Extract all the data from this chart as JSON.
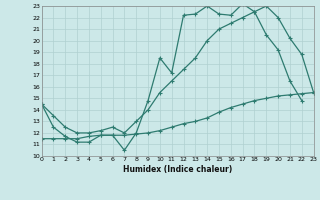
{
  "xlabel": "Humidex (Indice chaleur)",
  "xlim": [
    0,
    23
  ],
  "ylim": [
    10,
    23
  ],
  "xticks": [
    0,
    1,
    2,
    3,
    4,
    5,
    6,
    7,
    8,
    9,
    10,
    11,
    12,
    13,
    14,
    15,
    16,
    17,
    18,
    19,
    20,
    21,
    22,
    23
  ],
  "yticks": [
    10,
    11,
    12,
    13,
    14,
    15,
    16,
    17,
    18,
    19,
    20,
    21,
    22,
    23
  ],
  "bg_color": "#cce8e8",
  "line_color": "#2e7b70",
  "grid_color": "#b0d0d0",
  "line1_x": [
    0,
    1,
    2,
    3,
    4,
    5,
    6,
    7,
    8,
    9,
    10,
    11,
    12,
    13,
    14,
    15,
    16,
    17,
    18,
    19,
    20,
    21,
    22
  ],
  "line1_y": [
    14.5,
    12.5,
    11.7,
    11.2,
    11.2,
    11.8,
    11.8,
    10.5,
    12.0,
    14.8,
    18.5,
    17.2,
    22.2,
    22.3,
    23.0,
    22.3,
    22.2,
    23.2,
    22.5,
    20.5,
    19.2,
    16.5,
    14.8
  ],
  "line2_x": [
    0,
    1,
    2,
    3,
    4,
    5,
    6,
    7,
    8,
    9,
    10,
    11,
    12,
    13,
    14,
    15,
    16,
    17,
    18,
    19,
    20,
    21,
    22,
    23
  ],
  "line2_y": [
    14.5,
    13.5,
    12.5,
    12.0,
    12.0,
    12.2,
    12.5,
    12.0,
    13.0,
    14.0,
    15.5,
    16.5,
    17.5,
    18.5,
    20.0,
    21.0,
    21.5,
    22.0,
    22.5,
    23.0,
    22.0,
    20.2,
    18.8,
    15.5
  ],
  "line3_x": [
    0,
    1,
    2,
    3,
    4,
    5,
    6,
    7,
    8,
    9,
    10,
    11,
    12,
    13,
    14,
    15,
    16,
    17,
    18,
    19,
    20,
    21,
    22,
    23
  ],
  "line3_y": [
    11.5,
    11.5,
    11.5,
    11.5,
    11.7,
    11.8,
    11.8,
    11.8,
    11.9,
    12.0,
    12.2,
    12.5,
    12.8,
    13.0,
    13.3,
    13.8,
    14.2,
    14.5,
    14.8,
    15.0,
    15.2,
    15.3,
    15.4,
    15.5
  ]
}
